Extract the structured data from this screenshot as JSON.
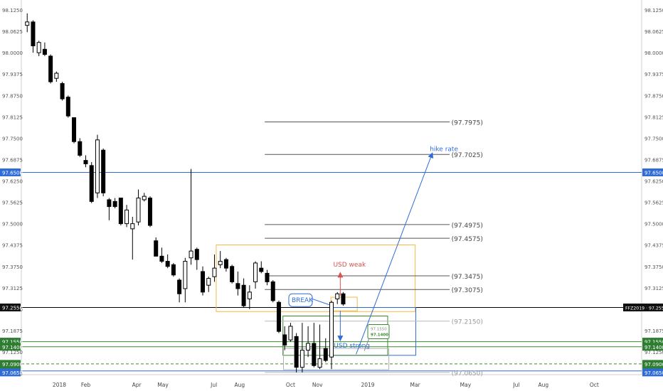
{
  "chart_data": {
    "type": "candlestick",
    "y_axis": {
      "min": 97.0585,
      "max": 98.1375,
      "tick_labels": [
        "98.1250",
        "98.0625",
        "98.0000",
        "97.9375",
        "97.8750",
        "97.8125",
        "97.7500",
        "97.6875",
        "97.6250",
        "97.5625",
        "97.5000",
        "97.4375",
        "97.3750",
        "97.3125",
        "97.2500",
        "97.1875",
        "97.1250",
        "97.0625"
      ],
      "tick_values": [
        98.125,
        98.0625,
        98.0,
        97.9375,
        97.875,
        97.8125,
        97.75,
        97.6875,
        97.625,
        97.5625,
        97.5,
        97.4375,
        97.375,
        97.3125,
        97.25,
        97.1875,
        97.125,
        97.0625
      ],
      "side": "both"
    },
    "x_axis": {
      "min_week": 0,
      "max_week": 106,
      "labels": [
        {
          "label": "2018",
          "week": 6.5
        },
        {
          "label": "Feb",
          "week": 11
        },
        {
          "label": "Apr",
          "week": 19.7
        },
        {
          "label": "May",
          "week": 24.2
        },
        {
          "label": "Jul",
          "week": 32.9
        },
        {
          "label": "Aug",
          "week": 37.3
        },
        {
          "label": "Oct",
          "week": 46
        },
        {
          "label": "Nov",
          "week": 50.6
        },
        {
          "label": "2019",
          "week": 59.2
        },
        {
          "label": "Mar",
          "week": 67.3
        },
        {
          "label": "May",
          "week": 75.9
        },
        {
          "label": "Jul",
          "week": 84.6
        },
        {
          "label": "Aug",
          "week": 89.2
        },
        {
          "label": "Oct",
          "week": 97.9
        }
      ]
    },
    "candles": [
      {
        "o": 98.08,
        "h": 98.115,
        "l": 98.06,
        "c": 98.09
      },
      {
        "o": 98.09,
        "h": 98.095,
        "l": 98.0,
        "c": 98.02
      },
      {
        "o": 98.0,
        "h": 98.035,
        "l": 97.99,
        "c": 98.03
      },
      {
        "o": 98.01,
        "h": 98.03,
        "l": 97.99,
        "c": 97.995
      },
      {
        "o": 97.99,
        "h": 97.995,
        "l": 97.91,
        "c": 97.915
      },
      {
        "o": 97.925,
        "h": 97.945,
        "l": 97.915,
        "c": 97.94
      },
      {
        "o": 97.91,
        "h": 97.915,
        "l": 97.86,
        "c": 97.865
      },
      {
        "o": 97.87,
        "h": 97.875,
        "l": 97.81,
        "c": 97.815
      },
      {
        "o": 97.81,
        "h": 97.81,
        "l": 97.735,
        "c": 97.74
      },
      {
        "o": 97.74,
        "h": 97.75,
        "l": 97.695,
        "c": 97.7
      },
      {
        "o": 97.685,
        "h": 97.7,
        "l": 97.665,
        "c": 97.675
      },
      {
        "o": 97.67,
        "h": 97.68,
        "l": 97.56,
        "c": 97.565
      },
      {
        "o": 97.59,
        "h": 97.76,
        "l": 97.575,
        "c": 97.745
      },
      {
        "o": 97.715,
        "h": 97.72,
        "l": 97.58,
        "c": 97.59
      },
      {
        "o": 97.57,
        "h": 97.575,
        "l": 97.51,
        "c": 97.55
      },
      {
        "o": 97.565,
        "h": 97.575,
        "l": 97.545,
        "c": 97.55
      },
      {
        "o": 97.575,
        "h": 97.575,
        "l": 97.495,
        "c": 97.5
      },
      {
        "o": 97.5,
        "h": 97.555,
        "l": 97.49,
        "c": 97.54
      },
      {
        "o": 97.485,
        "h": 97.52,
        "l": 97.395,
        "c": 97.5
      },
      {
        "o": 97.505,
        "h": 97.6,
        "l": 97.495,
        "c": 97.575
      },
      {
        "o": 97.57,
        "h": 97.59,
        "l": 97.565,
        "c": 97.58
      },
      {
        "o": 97.575,
        "h": 97.58,
        "l": 97.49,
        "c": 97.495
      },
      {
        "o": 97.45,
        "h": 97.46,
        "l": 97.405,
        "c": 97.405
      },
      {
        "o": 97.405,
        "h": 97.43,
        "l": 97.385,
        "c": 97.39
      },
      {
        "o": 97.39,
        "h": 97.41,
        "l": 97.37,
        "c": 97.375
      },
      {
        "o": 97.38,
        "h": 97.385,
        "l": 97.345,
        "c": 97.35
      },
      {
        "o": 97.335,
        "h": 97.34,
        "l": 97.27,
        "c": 97.295
      },
      {
        "o": 97.31,
        "h": 97.4,
        "l": 97.27,
        "c": 97.39
      },
      {
        "o": 97.4,
        "h": 97.66,
        "l": 97.38,
        "c": 97.42
      },
      {
        "o": 97.425,
        "h": 97.43,
        "l": 97.365,
        "c": 97.395
      },
      {
        "o": 97.36,
        "h": 97.375,
        "l": 97.29,
        "c": 97.3
      },
      {
        "o": 97.32,
        "h": 97.345,
        "l": 97.3,
        "c": 97.34
      },
      {
        "o": 97.345,
        "h": 97.41,
        "l": 97.33,
        "c": 97.37
      },
      {
        "o": 97.38,
        "h": 97.42,
        "l": 97.37,
        "c": 97.39
      },
      {
        "o": 97.395,
        "h": 97.4,
        "l": 97.36,
        "c": 97.37
      },
      {
        "o": 97.375,
        "h": 97.38,
        "l": 97.325,
        "c": 97.33
      },
      {
        "o": 97.325,
        "h": 97.36,
        "l": 97.29,
        "c": 97.31
      },
      {
        "o": 97.32,
        "h": 97.34,
        "l": 97.255,
        "c": 97.26
      },
      {
        "o": 97.28,
        "h": 97.32,
        "l": 97.25,
        "c": 97.3
      },
      {
        "o": 97.33,
        "h": 97.39,
        "l": 97.31,
        "c": 97.385
      },
      {
        "o": 97.37,
        "h": 97.39,
        "l": 97.355,
        "c": 97.36
      },
      {
        "o": 97.355,
        "h": 97.365,
        "l": 97.32,
        "c": 97.33
      },
      {
        "o": 97.33,
        "h": 97.335,
        "l": 97.27,
        "c": 97.275
      },
      {
        "o": 97.27,
        "h": 97.275,
        "l": 97.18,
        "c": 97.185
      },
      {
        "o": 97.175,
        "h": 97.2,
        "l": 97.13,
        "c": 97.145
      },
      {
        "o": 97.16,
        "h": 97.21,
        "l": 97.155,
        "c": 97.2
      },
      {
        "o": 97.17,
        "h": 97.18,
        "l": 97.065,
        "c": 97.08
      },
      {
        "o": 97.08,
        "h": 97.21,
        "l": 97.065,
        "c": 97.13
      },
      {
        "o": 97.13,
        "h": 97.2,
        "l": 97.11,
        "c": 97.15
      },
      {
        "o": 97.15,
        "h": 97.21,
        "l": 97.08,
        "c": 97.085
      },
      {
        "o": 97.08,
        "h": 97.205,
        "l": 97.075,
        "c": 97.105
      },
      {
        "o": 97.135,
        "h": 97.165,
        "l": 97.095,
        "c": 97.1
      },
      {
        "o": 97.11,
        "h": 97.275,
        "l": 97.075,
        "c": 97.27
      },
      {
        "o": 97.28,
        "h": 97.3,
        "l": 97.265,
        "c": 97.295
      },
      {
        "o": 97.295,
        "h": 97.3,
        "l": 97.26,
        "c": 97.265
      }
    ],
    "horizontal_lines": [
      {
        "value": 97.65,
        "color": "#2f6cd8"
      },
      {
        "value": 97.255,
        "color": "#000000"
      },
      {
        "value": 97.0695,
        "color": "#2f6cd8"
      },
      {
        "value": 97.155,
        "color": "#3a8a2e"
      },
      {
        "value": 97.14,
        "color": "#3a8a2e"
      },
      {
        "value": 97.09,
        "color": "#3a8a2e",
        "dashed": true
      }
    ],
    "fib_levels": [
      {
        "value": 97.7975,
        "label": "(97.7975)",
        "faded": false
      },
      {
        "value": 97.7025,
        "label": "(97.7025)",
        "faded": false
      },
      {
        "value": 97.4975,
        "label": "(97.4975)",
        "faded": false
      },
      {
        "value": 97.4575,
        "label": "(97.4575)",
        "faded": false
      },
      {
        "value": 97.3475,
        "label": "(97.3475)",
        "faded": false
      },
      {
        "value": 97.3075,
        "label": "(97.3075)",
        "faded": false
      },
      {
        "value": 97.215,
        "label": "(97.2150)",
        "faded": true
      },
      {
        "value": 97.065,
        "label": "(97.0650)",
        "faded": true
      }
    ],
    "left_price_labels": [
      {
        "text": "97.6500",
        "value": 97.65,
        "bg": "#2f6cd8"
      },
      {
        "text": "97.2550",
        "value": 97.255,
        "bg": "#111111"
      },
      {
        "text": "97.1550",
        "value": 97.155,
        "bg": "#2e7d32"
      },
      {
        "text": "97.1400",
        "value": 97.14,
        "bg": "#2e7d32"
      },
      {
        "text": "97.0900",
        "value": 97.09,
        "bg": "#2e7d32"
      },
      {
        "text": "97.0700",
        "value": 97.07,
        "bg": "#2e7d32"
      },
      {
        "text": "97.0650",
        "value": 97.065,
        "bg": "#2f6cd8"
      }
    ],
    "right_price_labels": [
      {
        "text": "97.6500",
        "value": 97.65,
        "bg": "#2f6cd8"
      },
      {
        "text": "FFZ2019 · 97.2550",
        "value": 97.255,
        "bg": "#111111"
      },
      {
        "text": "97.1550",
        "value": 97.155,
        "bg": "#2e7d32"
      },
      {
        "text": "97.1400",
        "value": 97.14,
        "bg": "#2e7d32"
      },
      {
        "text": "97.0900",
        "value": 97.09,
        "bg": "#2e7d32"
      },
      {
        "text": "97.0700",
        "value": 97.07,
        "bg": "#2e7d32"
      },
      {
        "text": "97.0650",
        "value": 97.065,
        "bg": "#2f6cd8"
      }
    ],
    "annotations": {
      "usd_weak": "USD weak",
      "usd_strong": "USD strong",
      "break": "BREAK",
      "hike_rate": "hike rate",
      "callout_small_1": "97.1550",
      "callout_small_2": "97.1400"
    },
    "colors": {
      "bear": "#000000",
      "bull": "#ffffff",
      "orange_box": "#f5b942",
      "blue": "#2f6cd8",
      "green": "#3a8a2e",
      "red": "#d9534f"
    }
  }
}
